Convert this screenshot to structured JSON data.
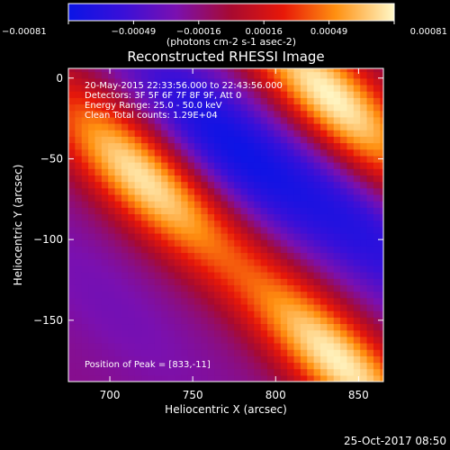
{
  "chart_data": {
    "type": "heatmap",
    "title": "Reconstructed RHESSI Image",
    "xlabel": "Heliocentric X (arcsec)",
    "ylabel": "Heliocentric Y (arcsec)",
    "xlim": [
      675,
      865
    ],
    "ylim": [
      -188,
      6
    ],
    "x_ticks": [
      700,
      750,
      800,
      850
    ],
    "y_ticks": [
      0,
      -50,
      -100,
      -150
    ],
    "colorbar": {
      "ticks": [
        "-0.00081",
        "-0.00049",
        "-0.00016",
        "0.00016",
        "0.00049",
        "0.00081"
      ],
      "range": [
        -0.00081,
        0.00081
      ],
      "unit_label": "(photons cm-2 s-1 asec-2)"
    },
    "annotations": [
      "20-May-2015 22:33:56.000 to 22:43:56.000",
      "Detectors: 3F 5F 6F 7F 8F 9F, Att 0",
      "Energy Range: 25.0 - 50.0 keV",
      "Clean    Total counts: 1.29E+04"
    ],
    "peak_label": "Position of Peak = [833,-11]",
    "peak": [
      833,
      -11
    ],
    "bands": [
      {
        "cx": 718,
        "cy": -60,
        "value": 0.00075
      },
      {
        "cx": 833,
        "cy": -11,
        "value": 0.00081
      },
      {
        "cx": 838,
        "cy": -175,
        "value": 0.00078
      },
      {
        "cx": 770,
        "cy": -40,
        "value": -0.00075
      },
      {
        "cx": 855,
        "cy": -95,
        "value": -0.0006
      },
      {
        "cx": 700,
        "cy": -140,
        "value": -0.0003
      }
    ]
  },
  "footer": {
    "timestamp": "25-Oct-2017 08:50"
  }
}
